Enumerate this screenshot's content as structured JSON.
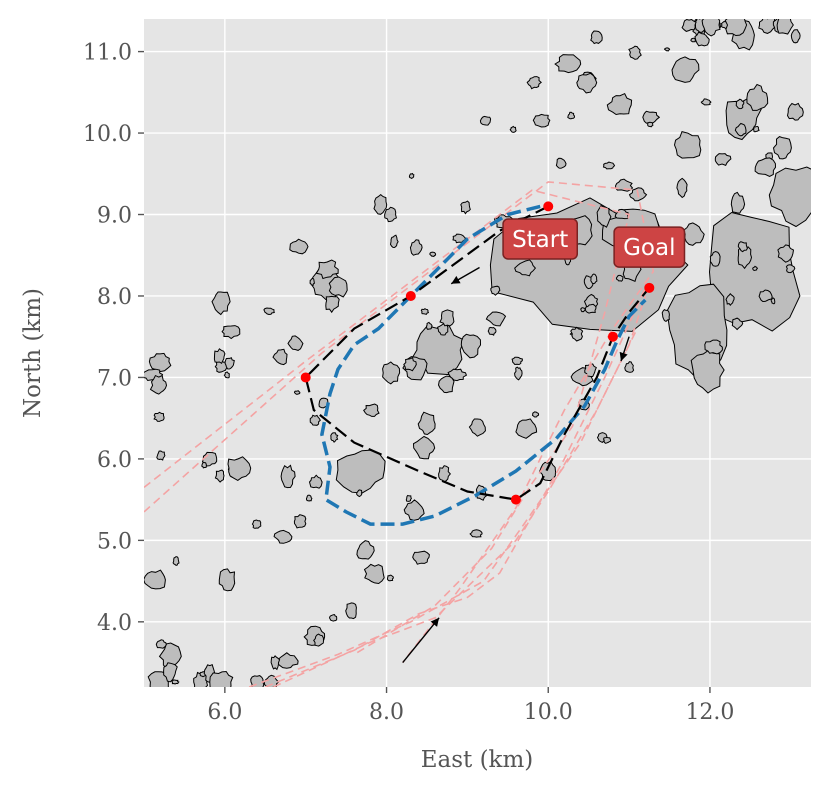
{
  "chart_data": {
    "type": "scatter",
    "title": "",
    "xlabel": "East (km)",
    "ylabel": "North (km)",
    "xlim": [
      5.0,
      13.25
    ],
    "ylim": [
      3.2,
      11.4
    ],
    "xticks": [
      "6.0",
      "8.0",
      "10.0",
      "12.0"
    ],
    "xtick_values": [
      6,
      8,
      10,
      12
    ],
    "yticks": [
      "4.0",
      "5.0",
      "6.0",
      "7.0",
      "8.0",
      "9.0",
      "10.0",
      "11.0"
    ],
    "ytick_values": [
      4,
      5,
      6,
      7,
      8,
      9,
      10,
      11
    ],
    "grid": true,
    "colors": {
      "plot_background": "#e5e5e5",
      "grid": "#ffffff",
      "island_fill": "#bdbdbd",
      "island_edge": "#000000",
      "planned_route": "#000000",
      "executed_route": "#1f77b4",
      "waypoints": "#ff0000",
      "candidate_tracks": "#f4a3a3",
      "label_box": "#cd4444"
    },
    "annotations": [
      {
        "text": "Start",
        "x": 9.9,
        "y": 8.7
      },
      {
        "text": "Goal",
        "x": 11.25,
        "y": 8.6
      }
    ],
    "waypoints": {
      "x": [
        10.0,
        8.3,
        7.0,
        9.6,
        10.8,
        11.25
      ],
      "y": [
        9.1,
        8.0,
        7.0,
        5.5,
        7.5,
        8.1
      ]
    },
    "planned_route": {
      "x": [
        10.0,
        9.4,
        8.3,
        7.6,
        7.0,
        7.1,
        7.6,
        8.4,
        9.0,
        9.6,
        9.9,
        10.2,
        10.6,
        10.8,
        11.0,
        11.25
      ],
      "y": [
        9.1,
        8.8,
        8.0,
        7.6,
        7.0,
        6.6,
        6.2,
        5.85,
        5.6,
        5.5,
        5.7,
        6.3,
        7.0,
        7.5,
        7.8,
        8.1
      ]
    },
    "executed_route": {
      "x": [
        9.9,
        9.5,
        9.0,
        8.5,
        8.2,
        7.9,
        7.6,
        7.4,
        7.3,
        7.2,
        7.3,
        7.25,
        7.5,
        7.8,
        8.2,
        8.6,
        9.1,
        9.6,
        10.1,
        10.45,
        10.7,
        10.85,
        11.0,
        11.2
      ],
      "y": [
        9.1,
        9.0,
        8.7,
        8.2,
        7.9,
        7.6,
        7.4,
        7.1,
        6.8,
        6.3,
        5.9,
        5.5,
        5.35,
        5.2,
        5.2,
        5.3,
        5.55,
        5.85,
        6.25,
        6.65,
        7.1,
        7.45,
        7.75,
        7.95
      ]
    },
    "candidate_tracks": [
      {
        "x": [
          5.0,
          7.2,
          10.0,
          11.1,
          11.3,
          10.8,
          10.2,
          9.6,
          8.9,
          8.2
        ],
        "y": [
          5.35,
          7.3,
          9.4,
          9.3,
          8.3,
          7.6,
          6.6,
          5.4,
          4.4,
          3.5
        ]
      },
      {
        "x": [
          5.0,
          7.0,
          9.8,
          11.0,
          10.7,
          10.3,
          9.8,
          9.3,
          8.6,
          7.6
        ],
        "y": [
          5.65,
          7.2,
          9.3,
          9.0,
          7.8,
          6.4,
          5.7,
          4.9,
          4.2,
          3.6
        ]
      },
      {
        "x": [
          6.5,
          7.6,
          8.4,
          9.0,
          9.4,
          10.2,
          10.7,
          11.2
        ],
        "y": [
          3.2,
          3.65,
          4.1,
          4.3,
          4.6,
          6.0,
          7.0,
          8.1
        ]
      },
      {
        "x": [
          6.3,
          7.4,
          8.3,
          9.2,
          9.7,
          10.4,
          11.0,
          11.2
        ],
        "y": [
          3.2,
          3.6,
          4.0,
          4.5,
          5.2,
          6.2,
          7.4,
          8.0
        ]
      },
      {
        "x": [
          6.6,
          7.8,
          8.6,
          9.6,
          10.0,
          10.6,
          11.1
        ],
        "y": [
          3.2,
          3.75,
          4.05,
          5.0,
          5.6,
          6.6,
          7.6
        ]
      }
    ],
    "arrows": [
      {
        "x": [
          8.2,
          8.65
        ],
        "y": [
          3.5,
          4.05
        ]
      },
      {
        "x": [
          9.15,
          8.8
        ],
        "y": [
          8.35,
          8.15
        ]
      },
      {
        "x": [
          11.0,
          10.9
        ],
        "y": [
          7.5,
          7.2
        ]
      }
    ]
  }
}
